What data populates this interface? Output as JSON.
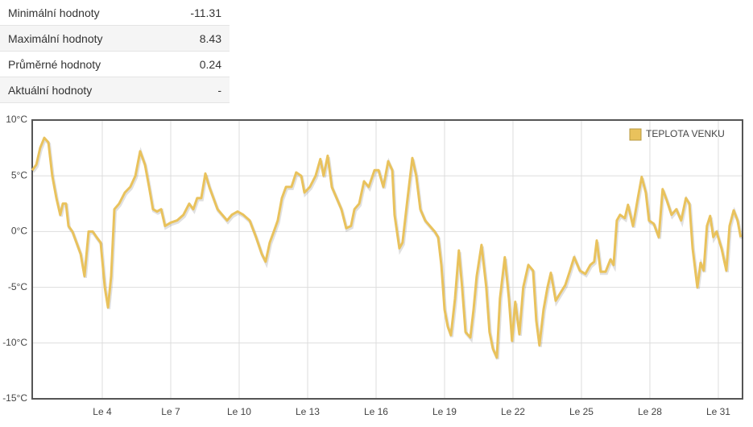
{
  "stats": {
    "rows": [
      {
        "label": "Minimální hodnoty",
        "value": "-11.31"
      },
      {
        "label": "Maximální hodnoty",
        "value": "8.43"
      },
      {
        "label": "Průměrné hodnoty",
        "value": "0.24"
      },
      {
        "label": "Aktuální hodnoty",
        "value": "-"
      }
    ]
  },
  "chart_data": {
    "type": "line",
    "grid": true,
    "legend": "top-right",
    "xlim": [
      0.93,
      32.06
    ],
    "xticks": [
      {
        "value": 4,
        "label": "Le 4"
      },
      {
        "value": 7,
        "label": "Le 7"
      },
      {
        "value": 10,
        "label": "Le 10"
      },
      {
        "value": 13,
        "label": "Le 13"
      },
      {
        "value": 16,
        "label": "Le 16"
      },
      {
        "value": 19,
        "label": "Le 19"
      },
      {
        "value": 22,
        "label": "Le 22"
      },
      {
        "value": 25,
        "label": "Le 25"
      },
      {
        "value": 28,
        "label": "Le 28"
      },
      {
        "value": 31,
        "label": "Le 31"
      }
    ],
    "ylim": [
      -15,
      10
    ],
    "yticks": [
      {
        "value": -15,
        "label": "-15°C"
      },
      {
        "value": -10,
        "label": "-10°C"
      },
      {
        "value": -5,
        "label": "-5°C"
      },
      {
        "value": 0,
        "label": "0°C"
      },
      {
        "value": 5,
        "label": "5°C"
      },
      {
        "value": 10,
        "label": "10°C"
      }
    ],
    "x": [
      0.93,
      1.11,
      1.28,
      1.46,
      1.64,
      1.81,
      1.99,
      2.16,
      2.27,
      2.41,
      2.52,
      2.69,
      2.87,
      3.05,
      3.22,
      3.4,
      3.58,
      3.75,
      3.93,
      4.11,
      4.25,
      4.39,
      4.53,
      4.74,
      4.99,
      5.23,
      5.45,
      5.66,
      5.87,
      6.05,
      6.22,
      6.4,
      6.58,
      6.75,
      7.0,
      7.28,
      7.56,
      7.81,
      7.99,
      8.16,
      8.34,
      8.52,
      8.69,
      8.87,
      9.05,
      9.26,
      9.47,
      9.68,
      9.93,
      10.18,
      10.46,
      10.74,
      10.99,
      11.16,
      11.34,
      11.52,
      11.69,
      11.87,
      12.05,
      12.29,
      12.5,
      12.72,
      12.86,
      13.1,
      13.35,
      13.56,
      13.7,
      13.88,
      14.06,
      14.27,
      14.48,
      14.69,
      14.9,
      15.05,
      15.26,
      15.47,
      15.68,
      15.93,
      16.11,
      16.32,
      16.53,
      16.71,
      16.81,
      17.02,
      17.16,
      17.38,
      17.59,
      17.76,
      17.94,
      18.15,
      18.36,
      18.57,
      18.72,
      18.86,
      19.0,
      19.14,
      19.28,
      19.46,
      19.63,
      19.77,
      19.92,
      20.13,
      20.27,
      20.41,
      20.62,
      20.83,
      20.97,
      21.12,
      21.29,
      21.43,
      21.64,
      21.82,
      21.96,
      22.1,
      22.28,
      22.45,
      22.67,
      22.88,
      23.02,
      23.16,
      23.34,
      23.51,
      23.66,
      23.87,
      24.08,
      24.29,
      24.5,
      24.68,
      24.93,
      25.17,
      25.39,
      25.56,
      25.67,
      25.84,
      26.06,
      26.27,
      26.41,
      26.55,
      26.69,
      26.9,
      27.04,
      27.26,
      27.47,
      27.64,
      27.82,
      27.96,
      28.17,
      28.39,
      28.56,
      28.74,
      28.95,
      29.16,
      29.37,
      29.58,
      29.73,
      29.87,
      30.08,
      30.22,
      30.36,
      30.5,
      30.64,
      30.78,
      30.92,
      31.14,
      31.35,
      31.49,
      31.67,
      31.84,
      31.98
    ],
    "series": [
      {
        "name": "TEPLOTA VENKU",
        "color": "#e9c25c",
        "values": [
          5.5,
          6,
          7.5,
          8.4,
          8,
          5,
          3,
          1.5,
          2.5,
          2.5,
          0.5,
          0,
          -1,
          -2,
          -4,
          0,
          0,
          -0.5,
          -1,
          -5,
          -6.8,
          -4,
          2,
          2.5,
          3.5,
          4,
          5,
          7.2,
          6,
          4,
          2,
          1.8,
          2,
          0.5,
          0.8,
          1,
          1.5,
          2.5,
          2,
          3,
          3,
          5.2,
          4,
          3,
          2,
          1.5,
          1,
          1.5,
          1.8,
          1.5,
          1,
          -0.5,
          -2,
          -2.7,
          -1,
          0,
          1,
          3,
          4,
          4,
          5.3,
          5,
          3.5,
          4,
          5,
          6.5,
          5,
          6.8,
          4,
          3,
          2,
          0.3,
          0.5,
          2,
          2.5,
          4.5,
          4,
          5.5,
          5.5,
          4,
          6.3,
          5.5,
          1.5,
          -1.5,
          -1,
          3,
          6.6,
          5,
          2,
          1,
          0.5,
          0,
          -0.5,
          -3,
          -7,
          -8.5,
          -9.3,
          -6,
          -1.7,
          -5,
          -9,
          -9.5,
          -7,
          -4,
          -1.2,
          -5,
          -9,
          -10.5,
          -11.3,
          -6,
          -2.3,
          -6,
          -9.8,
          -6.3,
          -9.2,
          -5,
          -3,
          -3.5,
          -8,
          -10.2,
          -7,
          -5,
          -3.7,
          -6.2,
          -5.5,
          -4.8,
          -3.5,
          -2.3,
          -3.5,
          -3.8,
          -3,
          -2.7,
          -0.8,
          -3.6,
          -3.6,
          -2.5,
          -3,
          1,
          1.5,
          1.2,
          2.4,
          0.5,
          3,
          4.9,
          3.5,
          1,
          0.7,
          -0.5,
          3.8,
          2.8,
          1.5,
          2,
          1,
          3,
          2.5,
          -1.5,
          -5,
          -2.8,
          -3.5,
          0.5,
          1.4,
          -0.5,
          0,
          -1.5,
          -3.5,
          0.5,
          1.9,
          1,
          -0.5
        ]
      }
    ]
  }
}
